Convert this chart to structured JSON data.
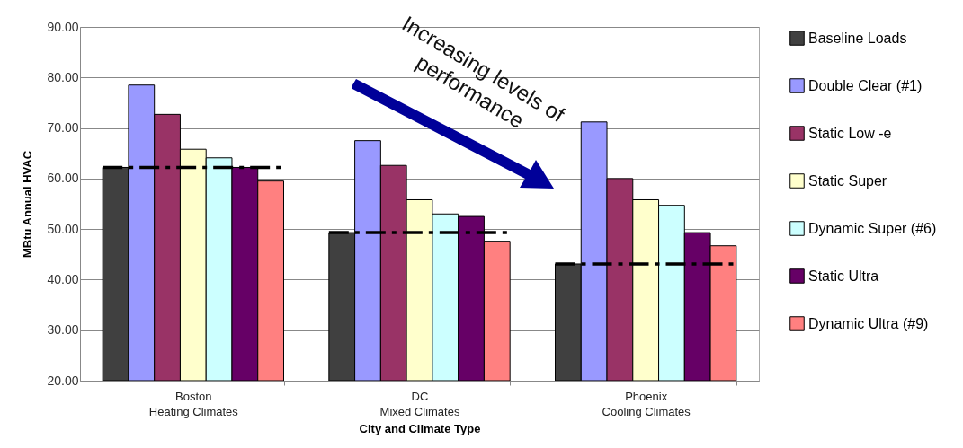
{
  "chart_data": {
    "type": "bar",
    "xlabel": "City and Climate Type",
    "ylabel": "MBtu Annual HVAC",
    "categories": [
      "Boston\nHeating Climates",
      "DC\nMixed Climates",
      "Phoenix\nCooling Climates"
    ],
    "series": [
      {
        "name": "Baseline Loads",
        "color": "#404040",
        "values": [
          62.2,
          49.3,
          43.1
        ]
      },
      {
        "name": "Double Clear (#1)",
        "color": "#9999ff",
        "values": [
          78.5,
          67.5,
          71.2
        ]
      },
      {
        "name": "Static Low -e",
        "color": "#993366",
        "values": [
          72.7,
          62.6,
          60.0
        ]
      },
      {
        "name": "Static Super",
        "color": "#ffffcc",
        "values": [
          65.8,
          55.8,
          55.8
        ]
      },
      {
        "name": "Dynamic Super (#6)",
        "color": "#ccffff",
        "values": [
          64.1,
          53.0,
          54.7
        ]
      },
      {
        "name": "Static Ultra",
        "color": "#660066",
        "values": [
          62.2,
          52.5,
          49.3
        ]
      },
      {
        "name": "Dynamic Ultra (#9)",
        "color": "#ff8080",
        "values": [
          59.5,
          47.6,
          46.7
        ]
      }
    ],
    "ylim": [
      20,
      90
    ],
    "yticks": [
      {
        "value": 20,
        "label": "20.00"
      },
      {
        "value": 30,
        "label": "30.00"
      },
      {
        "value": 40,
        "label": "40.00"
      },
      {
        "value": 50,
        "label": "50.00"
      },
      {
        "value": 60,
        "label": "60.00"
      },
      {
        "value": 70,
        "label": "70.00"
      },
      {
        "value": 80,
        "label": "80.00"
      },
      {
        "value": 90,
        "label": "90.00"
      }
    ],
    "ref_lines": [
      {
        "axis": "y",
        "value": 62.2,
        "line_style": "dashdot",
        "color": "#000000"
      },
      {
        "axis": "y",
        "value": 49.3,
        "line_style": "dashdot",
        "color": "#000000"
      },
      {
        "axis": "y",
        "value": 43.1,
        "line_style": "dashdot",
        "color": "#000000"
      }
    ],
    "annotations": [
      "Increasing levels of\nperformance"
    ],
    "grid": "y",
    "legend": "right"
  }
}
